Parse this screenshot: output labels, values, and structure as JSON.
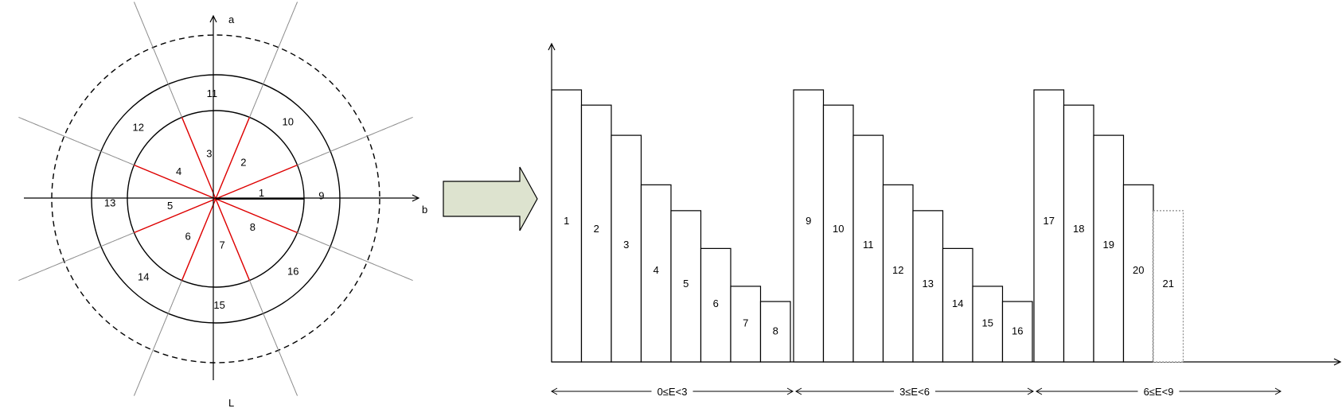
{
  "polar": {
    "axis_labels": {
      "a": "a",
      "b": "b",
      "l": "L"
    },
    "inner_sectors": [
      "1",
      "2",
      "3",
      "4",
      "5",
      "6",
      "7",
      "8"
    ],
    "ring_sectors": [
      "9",
      "10",
      "11",
      "12",
      "13",
      "14",
      "15",
      "16"
    ]
  },
  "bars": {
    "group_labels": [
      "0≤E<3",
      "3≤E<6",
      "6≤E<9"
    ],
    "groups": [
      {
        "labels": [
          "1",
          "2",
          "3",
          "4",
          "5",
          "6",
          "7",
          "8"
        ],
        "heights": [
          1.0,
          0.944,
          0.833,
          0.651,
          0.556,
          0.417,
          0.278,
          0.222
        ]
      },
      {
        "labels": [
          "9",
          "10",
          "11",
          "12",
          "13",
          "14",
          "15",
          "16"
        ],
        "heights": [
          1.0,
          0.944,
          0.833,
          0.651,
          0.556,
          0.417,
          0.278,
          0.222
        ]
      },
      {
        "labels": [
          "17",
          "18",
          "19",
          "20",
          "21"
        ],
        "heights": [
          1.0,
          0.944,
          0.833,
          0.651,
          0.556
        ],
        "dotted_last": true
      }
    ]
  },
  "colors": {
    "line": "#000000",
    "sector_line": "#e00000",
    "arrow_fill": "#dde3cf",
    "dotted_line": "#888888"
  }
}
